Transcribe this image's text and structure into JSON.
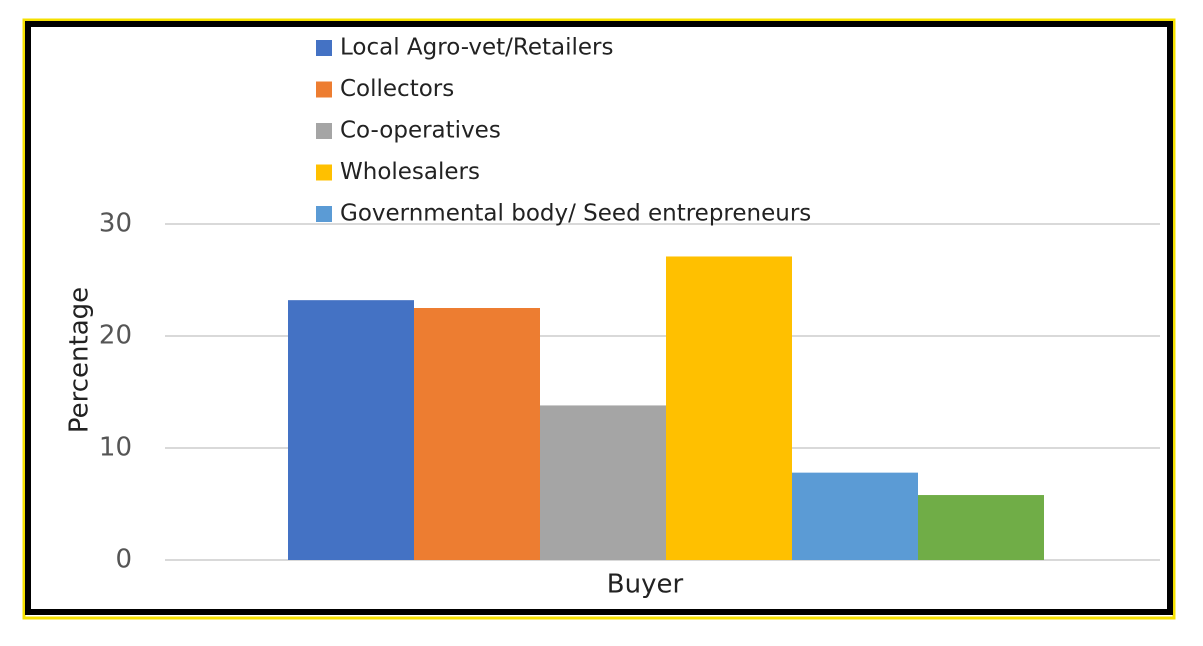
{
  "chart_data": {
    "type": "bar",
    "x_label": "Buyer",
    "y_label": "Percentage",
    "series": [
      {
        "name": "Local Agro-vet/Retailers",
        "color": "#4472c4",
        "values": [
          23.2
        ]
      },
      {
        "name": "Collectors",
        "color": "#ed7d31",
        "values": [
          22.5
        ]
      },
      {
        "name": "Co-operatives",
        "color": "#a5a5a5",
        "values": [
          13.8
        ]
      },
      {
        "name": "Wholesalers",
        "color": "#ffc000",
        "values": [
          27.1
        ]
      },
      {
        "name": "Governmental body/ Seed entrepreneurs",
        "color": "#5b9bd5",
        "values": [
          7.8
        ]
      },
      {
        "color": "#70ad47",
        "values": [
          5.8
        ]
      }
    ],
    "ylim": [
      0,
      30
    ],
    "yticks": [
      0,
      10,
      20,
      30
    ],
    "grid": true,
    "legend": "top"
  }
}
